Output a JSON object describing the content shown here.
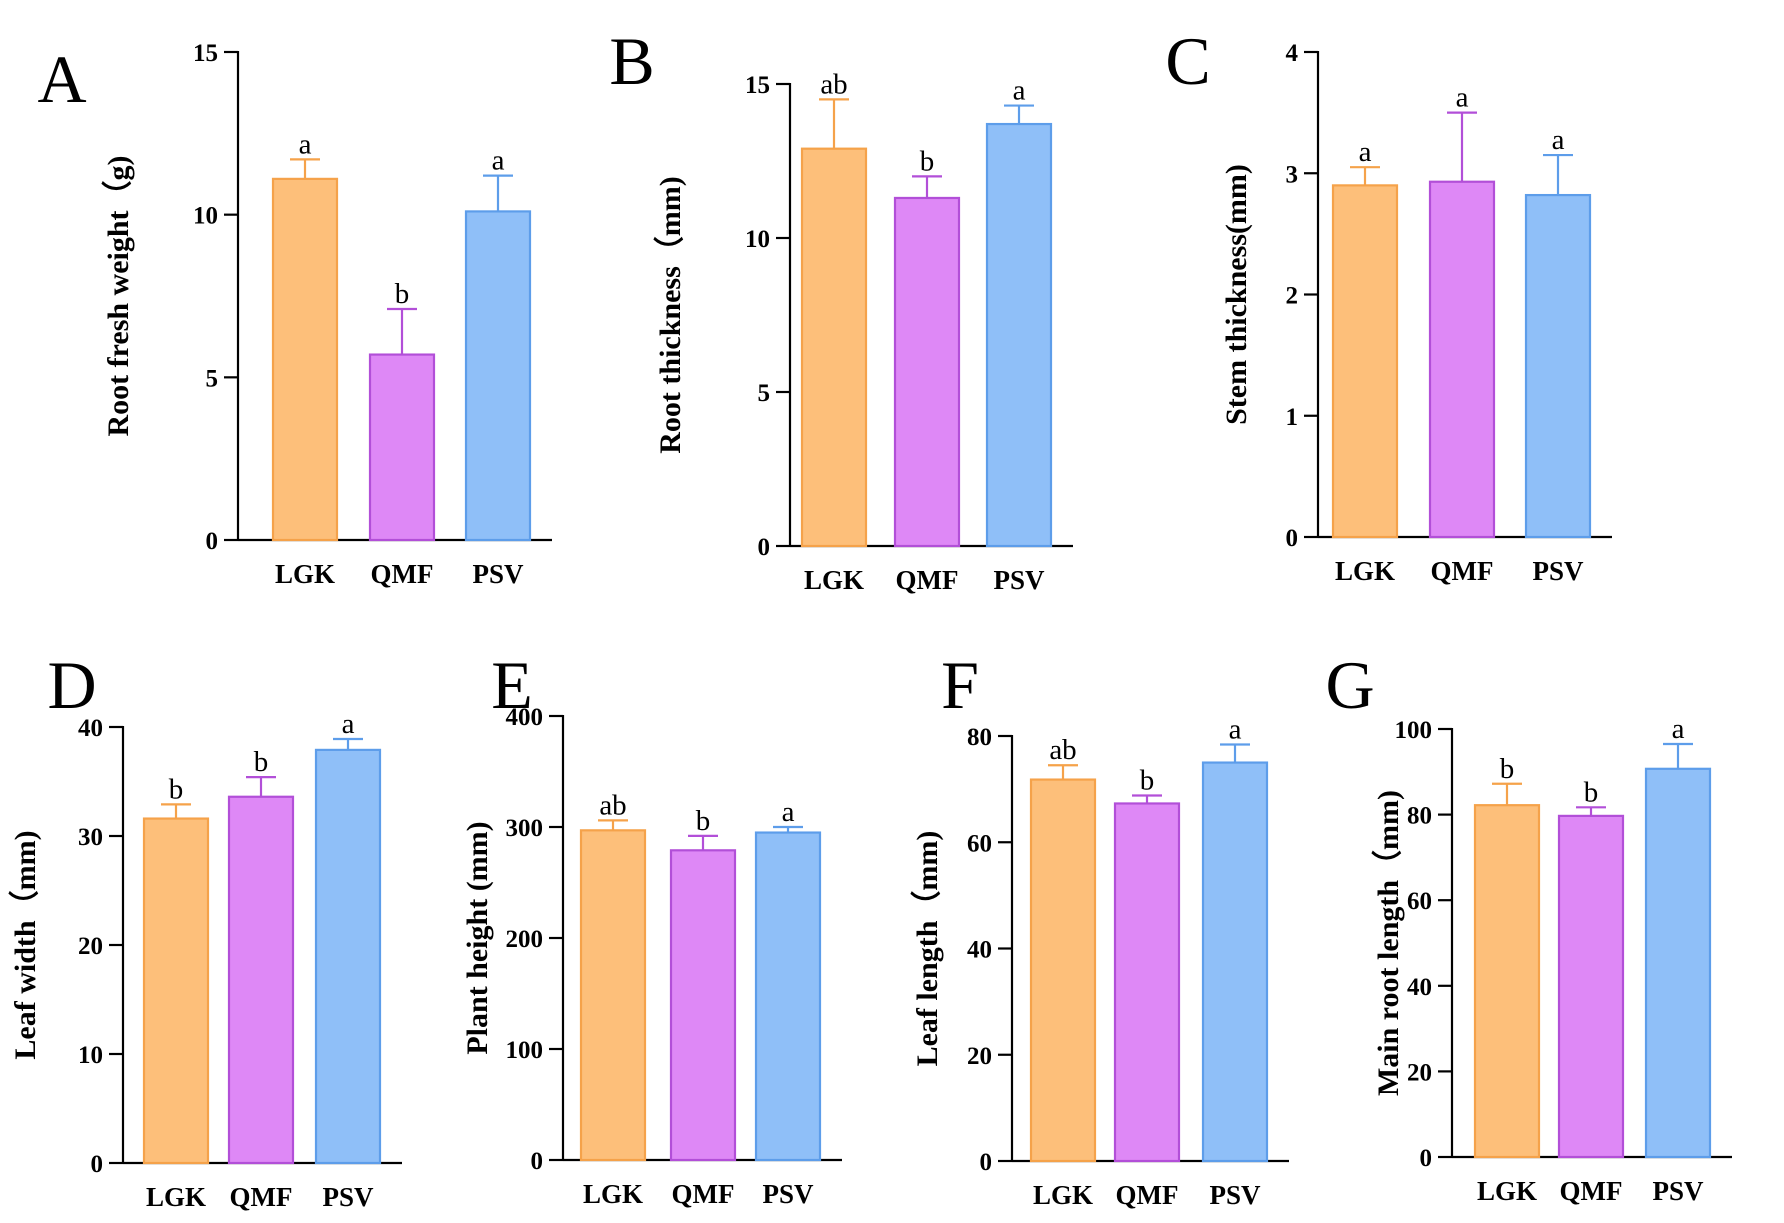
{
  "colors": {
    "fills": [
      "#FDBF7A",
      "#DE88F6",
      "#8FBFF8"
    ],
    "strokes": [
      "#F5A24A",
      "#B24FD8",
      "#5D9DEA"
    ]
  },
  "chart_data": [
    {
      "panel": "A",
      "type": "bar",
      "title": "",
      "ylabel": "Root fresh weight（g)",
      "ylim": [
        0,
        15
      ],
      "yticks": [
        0,
        5,
        10,
        15
      ],
      "categories": [
        "LGK",
        "QMF",
        "PSV"
      ],
      "values": [
        11.1,
        5.7,
        10.1
      ],
      "errors": [
        0.6,
        1.4,
        1.1
      ],
      "labels": [
        "a",
        "b",
        "a"
      ]
    },
    {
      "panel": "B",
      "type": "bar",
      "title": "",
      "ylabel": "Root thickness（mm)",
      "ylim": [
        0,
        15
      ],
      "yticks": [
        0,
        5,
        10,
        15
      ],
      "categories": [
        "LGK",
        "QMF",
        "PSV"
      ],
      "values": [
        12.9,
        11.3,
        13.7
      ],
      "errors": [
        1.6,
        0.7,
        0.6
      ],
      "labels": [
        "ab",
        "b",
        "a"
      ]
    },
    {
      "panel": "C",
      "type": "bar",
      "title": "",
      "ylabel": "Stem thickness(mm)",
      "ylim": [
        0,
        4
      ],
      "yticks": [
        0,
        1,
        2,
        3,
        4
      ],
      "categories": [
        "LGK",
        "QMF",
        "PSV"
      ],
      "values": [
        2.9,
        2.93,
        2.82
      ],
      "errors": [
        0.15,
        0.57,
        0.33
      ],
      "labels": [
        "a",
        "a",
        "a"
      ]
    },
    {
      "panel": "D",
      "type": "bar",
      "title": "",
      "ylabel": "Leaf width（mm)",
      "ylim": [
        0,
        40
      ],
      "yticks": [
        0,
        10,
        20,
        30,
        40
      ],
      "categories": [
        "LGK",
        "QMF",
        "PSV"
      ],
      "values": [
        31.6,
        33.6,
        37.9
      ],
      "errors": [
        1.3,
        1.8,
        1.0
      ],
      "labels": [
        "b",
        "b",
        "a"
      ]
    },
    {
      "panel": "E",
      "type": "bar",
      "title": "",
      "ylabel": "Plant height (mm)",
      "ylim": [
        0,
        400
      ],
      "yticks": [
        0,
        100,
        200,
        300,
        400
      ],
      "categories": [
        "LGK",
        "QMF",
        "PSV"
      ],
      "values": [
        297,
        279,
        295
      ],
      "errors": [
        9,
        13,
        5
      ],
      "labels": [
        "ab",
        "b",
        "a"
      ]
    },
    {
      "panel": "F",
      "type": "bar",
      "title": "",
      "ylabel": "Leaf length（mm)",
      "ylim": [
        0,
        80
      ],
      "yticks": [
        0,
        20,
        40,
        60,
        80
      ],
      "categories": [
        "LGK",
        "QMF",
        "PSV"
      ],
      "values": [
        71.8,
        67.3,
        75.0
      ],
      "errors": [
        2.7,
        1.5,
        3.4
      ],
      "labels": [
        "ab",
        "b",
        "a"
      ]
    },
    {
      "panel": "G",
      "type": "bar",
      "title": "",
      "ylabel": "Main root length（mm)",
      "ylim": [
        0,
        100
      ],
      "yticks": [
        0,
        20,
        40,
        60,
        80,
        100
      ],
      "categories": [
        "LGK",
        "QMF",
        "PSV"
      ],
      "values": [
        82.2,
        79.7,
        90.7
      ],
      "errors": [
        5.0,
        2.0,
        5.8
      ],
      "labels": [
        "b",
        "b",
        "a"
      ]
    }
  ]
}
